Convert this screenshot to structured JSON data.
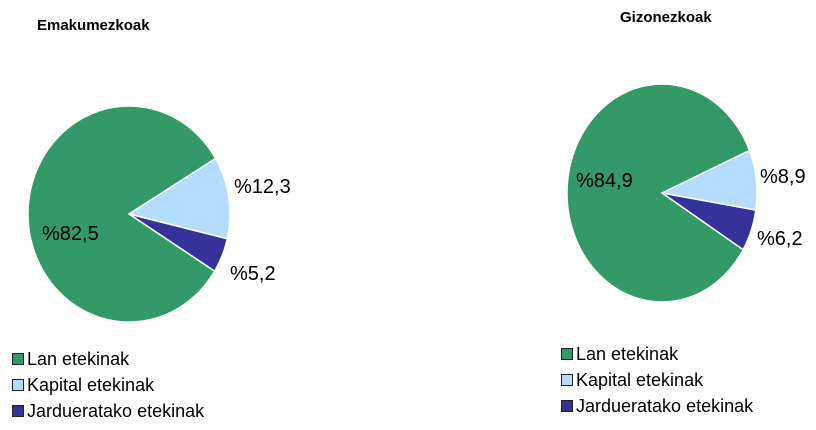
{
  "colors": {
    "lan": "#339966",
    "kapital": "#b3dcff",
    "jarduera": "#333399"
  },
  "legend": [
    {
      "label": "Lan etekinak",
      "color_key": "lan"
    },
    {
      "label": "Kapital etekinak",
      "color_key": "kapital"
    },
    {
      "label": "Jardueratako etekinak",
      "color_key": "jarduera"
    }
  ],
  "chart_data": [
    {
      "type": "pie",
      "title": "Emakumezkoak",
      "slices": [
        {
          "name": "Kapital etekinak",
          "value": 12.3,
          "label": "%12,3",
          "color_key": "kapital"
        },
        {
          "name": "Jardueratako etekinak",
          "value": 5.2,
          "label": "%5,2",
          "color_key": "jarduera"
        },
        {
          "name": "Lan etekinak",
          "value": 82.5,
          "label": "%82,5",
          "color_key": "lan"
        }
      ]
    },
    {
      "type": "pie",
      "title": "Gizonezkoak",
      "slices": [
        {
          "name": "Kapital etekinak",
          "value": 8.9,
          "label": "%8,9",
          "color_key": "kapital"
        },
        {
          "name": "Jardueratako etekinak",
          "value": 6.2,
          "label": "%6,2",
          "color_key": "jarduera"
        },
        {
          "name": "Lan etekinak",
          "value": 84.9,
          "label": "%84,9",
          "color_key": "lan"
        }
      ]
    }
  ]
}
